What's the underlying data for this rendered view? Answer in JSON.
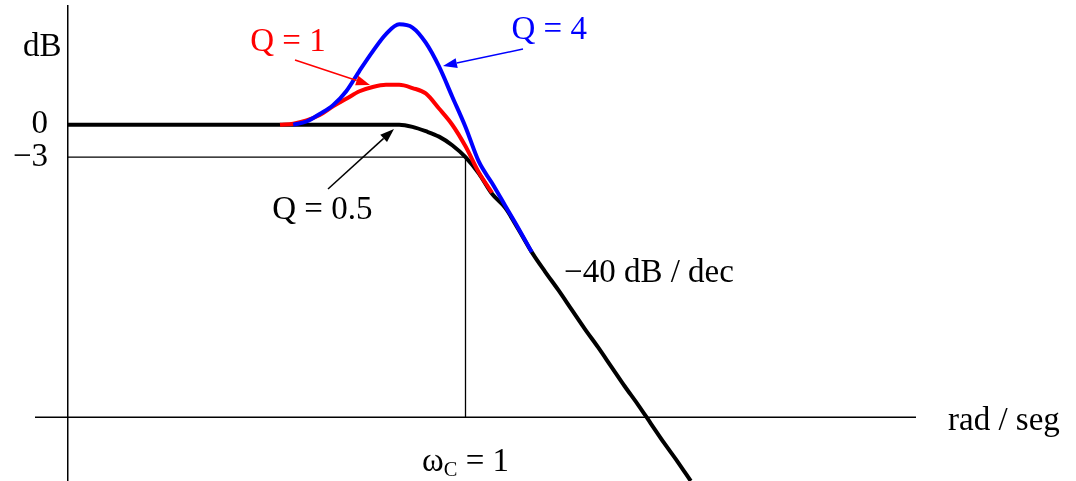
{
  "chart_data": {
    "type": "line",
    "ylabel": "dB",
    "xlabel": "rad / seg",
    "categories": [
      null,
      null,
      null,
      null,
      null,
      null,
      null,
      null,
      null,
      null,
      null,
      null,
      null,
      null,
      null,
      null,
      null,
      null,
      null,
      null,
      null,
      null,
      null,
      null,
      null,
      null,
      null,
      null,
      null,
      null,
      "ω$_{C}$ = 1",
      null,
      null,
      null,
      null,
      null,
      null,
      null,
      null,
      null,
      null,
      null,
      null,
      null,
      null,
      null,
      null,
      null,
      null,
      null,
      null,
      null,
      null,
      null,
      null,
      null,
      null,
      null,
      null,
      null,
      null,
      null,
      null,
      null,
      null
    ],
    "series": [
      {
        "name": "Q = 0.5",
        "color": "#000000",
        "values": [
          0,
          0,
          0,
          0,
          0,
          0,
          0,
          0,
          0,
          0,
          0,
          0,
          0,
          0,
          0,
          0,
          0,
          0,
          0,
          0,
          0,
          0,
          0,
          0,
          0,
          0,
          -0.2,
          -0.6,
          -1.1,
          -1.9,
          -3.0,
          -4.5,
          -6.4,
          -7.7,
          -9.7,
          -11.8,
          -13.6,
          -15.3,
          -17.1,
          -18.9,
          -20.6,
          -22.4,
          -24.2,
          -25.9,
          -27.7,
          -29.5,
          -31.2,
          -33.0,
          null,
          null,
          null,
          null,
          null,
          null,
          null,
          null,
          null,
          null,
          null,
          null,
          null,
          null,
          null,
          null,
          null
        ]
      },
      {
        "name": "Q = 1",
        "color": "#ff0000",
        "values": [
          null,
          null,
          null,
          null,
          null,
          null,
          null,
          null,
          null,
          null,
          null,
          null,
          null,
          null,
          null,
          null,
          0,
          0.1,
          0.4,
          0.9,
          1.7,
          2.4,
          3.1,
          3.5,
          3.7,
          3.7,
          3.4,
          2.9,
          1.5,
          0.0,
          -2.0,
          -4.4,
          -6.3,
          null,
          null,
          null,
          null,
          null,
          null,
          null,
          null,
          null,
          null,
          null,
          null,
          null,
          null,
          null,
          null,
          null,
          null,
          null,
          null,
          null,
          null,
          null,
          null,
          null,
          null,
          null,
          null,
          null,
          null,
          null,
          null
        ]
      },
      {
        "name": "Q = 4",
        "color": "#0000ff",
        "values": [
          null,
          null,
          null,
          null,
          null,
          null,
          null,
          null,
          null,
          null,
          null,
          null,
          null,
          null,
          null,
          null,
          null,
          0,
          0.3,
          1.0,
          1.8,
          3.1,
          5.0,
          6.8,
          8.4,
          9.3,
          9.0,
          7.6,
          5.4,
          2.6,
          -0.2,
          -3.4,
          -5.4,
          -7.5,
          -9.6,
          -11.8,
          null,
          null,
          null,
          null,
          null,
          null,
          null,
          null,
          null,
          null,
          null,
          null,
          null,
          null,
          null,
          null,
          null,
          null,
          null,
          null,
          null,
          null,
          null,
          null,
          null,
          null,
          null,
          null,
          null
        ]
      }
    ],
    "ylim": [
      -33,
      11
    ],
    "yticks": [
      0,
      {
        "value": -3,
        "label": "−3"
      }
    ],
    "ref_lines": [
      {
        "axis": "y",
        "value": -3
      },
      {
        "axis": "x",
        "value": "ω$_{C}$ = 1"
      },
      {
        "axis": "y",
        "value": -27.1
      }
    ],
    "annotations": [
      "−40 dB / dec"
    ],
    "marker": "none",
    "line_style": "solid"
  }
}
